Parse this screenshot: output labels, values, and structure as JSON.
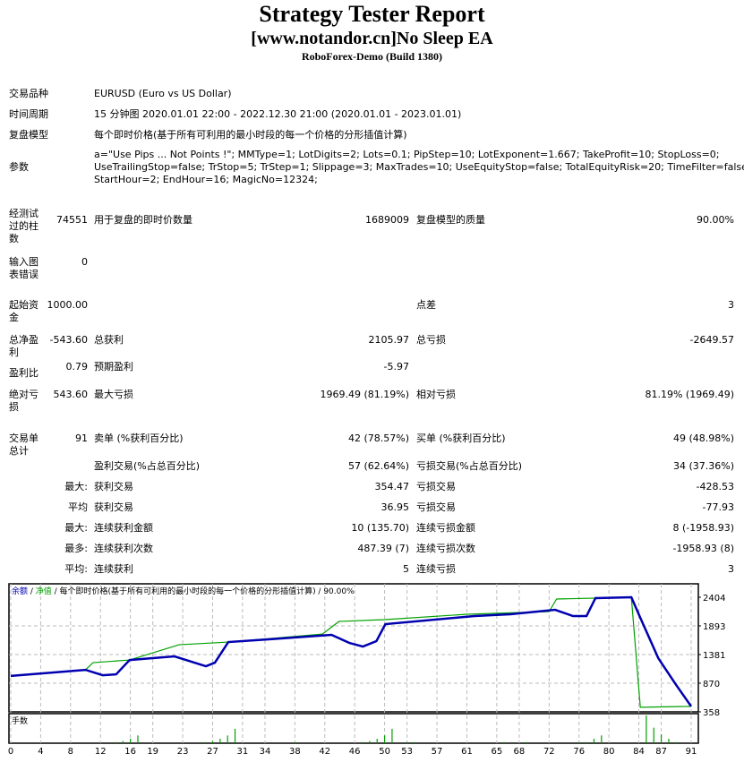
{
  "header": {
    "title": "Strategy Tester Report",
    "subtitle": "[www.notandor.cn]No Sleep EA",
    "build": "RoboForex-Demo (Build 1380)"
  },
  "info": {
    "symbol_label": "交易品种",
    "symbol": "EURUSD (Euro vs US Dollar)",
    "period_label": "时间周期",
    "period": "15 分钟图 2020.01.01 22:00 - 2022.12.30 21:00 (2020.01.01 - 2023.01.01)",
    "model_label": "复盘模型",
    "model": "每个即时价格(基于所有可利用的最小时段的每一个价格的分形插值计算)",
    "params_label": "参数",
    "params": [
      "a=\"Use Pips ... Not Points !\"; MMType=1; LotDigits=2; Lots=0.1; PipStep=10; LotExponent=1.667; TakeProfit=10; StopLoss=0;",
      "UseTrailingStop=false; TrStop=5; TrStep=1; Slippage=3; MaxTrades=10; UseEquityStop=false; TotalEquityRisk=20; TimeFilter=false;",
      "StartHour=2; EndHour=16; MagicNo=12324;"
    ]
  },
  "stats": [
    {
      "l1": "经测试过的柱数",
      "v1": "74551",
      "l2": "用于复盘的即时价数量",
      "v2": "1689009",
      "l3": "复盘模型的质量",
      "v3": "90.00%"
    },
    {
      "l1": "输入图表错误",
      "v1": "0"
    },
    {
      "l1": "起始资金",
      "v1": "1000.00",
      "l3": "点差",
      "v3": "3"
    },
    {
      "l1": "总净盈利",
      "v1": "-543.60",
      "l2": "总获利",
      "v2": "2105.97",
      "l3": "总亏损",
      "v3": "-2649.57"
    },
    {
      "l1": "盈利比",
      "v1": "0.79",
      "l2": "预期盈利",
      "v2": "-5.97"
    },
    {
      "l1": "绝对亏损",
      "v1": "543.60",
      "l2": "最大亏损",
      "v2": "1969.49 (81.19%)",
      "l3": "相对亏损",
      "v3": "81.19% (1969.49)"
    },
    {
      "l1": "交易单总计",
      "v1": "91",
      "l2": "卖单 (%获利百分比)",
      "v2": "42 (78.57%)",
      "l3": "买单 (%获利百分比)",
      "v3": "49 (48.98%)"
    },
    {
      "l2": "盈利交易(%占总百分比)",
      "v2": "57 (62.64%)",
      "l3": "亏损交易(%占总百分比)",
      "v3": "34 (37.36%)"
    },
    {
      "v1": "最大:",
      "l2": "获利交易",
      "v2": "354.47",
      "l3": "亏损交易",
      "v3": "-428.53"
    },
    {
      "v1": "平均",
      "l2": "获利交易",
      "v2": "36.95",
      "l3": "亏损交易",
      "v3": "-77.93"
    },
    {
      "v1": "最大:",
      "l2": "连续获利金额",
      "v2": "10 (135.70)",
      "l3": "连续亏损金额",
      "v3": "8 (-1958.93)"
    },
    {
      "v1": "最多:",
      "l2": "连续获利次数",
      "v2": "487.39 (7)",
      "l3": "连续亏损次数",
      "v3": "-1958.93 (8)"
    },
    {
      "v1": "平均:",
      "l2": "连续获利",
      "v2": "5",
      "l3": "连续亏损",
      "v3": "3"
    }
  ],
  "chart_data": {
    "type": "line",
    "legend": {
      "balance": "余额",
      "sep1": " / ",
      "equity": "净值",
      "rest": " / 每个即时价格(基于所有可利用的最小时段的每一个价格的分形插值计算) / 90.00%"
    },
    "lots_label": "手数",
    "colors": {
      "balance": "#00a000",
      "equity": "#0000b0",
      "lots": "#00a000"
    },
    "ylim": [
      358,
      2404
    ],
    "yticks": [
      2404,
      1893,
      1381,
      870,
      358
    ],
    "xlim": [
      0,
      91
    ],
    "xticks": [
      0,
      4,
      8,
      12,
      16,
      19,
      23,
      27,
      31,
      34,
      38,
      42,
      46,
      50,
      53,
      57,
      61,
      65,
      68,
      72,
      76,
      80,
      84,
      87,
      91
    ],
    "equity": [
      [
        0,
        1000
      ],
      [
        10,
        1108
      ],
      [
        12.3,
        1012
      ],
      [
        14.1,
        1028
      ],
      [
        15.9,
        1284
      ],
      [
        21.9,
        1348
      ],
      [
        26.1,
        1172
      ],
      [
        27.3,
        1236
      ],
      [
        29.1,
        1604
      ],
      [
        34.5,
        1652
      ],
      [
        42.9,
        1732
      ],
      [
        45.3,
        1588
      ],
      [
        47.1,
        1524
      ],
      [
        48.9,
        1620
      ],
      [
        50.1,
        1924
      ],
      [
        62,
        2068
      ],
      [
        66.8,
        2100
      ],
      [
        72.8,
        2180
      ],
      [
        75.2,
        2068
      ],
      [
        77,
        2068
      ],
      [
        78.2,
        2388
      ],
      [
        83,
        2404
      ],
      [
        84.2,
        2036
      ],
      [
        86.6,
        1316
      ],
      [
        89,
        836
      ],
      [
        91,
        456
      ]
    ],
    "balance": [
      [
        0,
        1000
      ],
      [
        10,
        1108
      ],
      [
        11,
        1236
      ],
      [
        15.9,
        1284
      ],
      [
        22.5,
        1556
      ],
      [
        29.1,
        1604
      ],
      [
        41.7,
        1748
      ],
      [
        43.9,
        1972
      ],
      [
        50,
        2004
      ],
      [
        61,
        2100
      ],
      [
        72,
        2148
      ],
      [
        73,
        2372
      ],
      [
        83,
        2404
      ],
      [
        84.2,
        440
      ],
      [
        91,
        456
      ]
    ],
    "lots": [
      [
        14,
        0.01
      ],
      [
        15,
        0.02
      ],
      [
        16,
        0.04
      ],
      [
        17,
        0.07
      ],
      [
        26,
        0.01
      ],
      [
        27,
        0.02
      ],
      [
        28,
        0.04
      ],
      [
        29,
        0.07
      ],
      [
        30,
        0.13
      ],
      [
        38,
        0.01
      ],
      [
        47,
        0.01
      ],
      [
        48,
        0.02
      ],
      [
        49,
        0.04
      ],
      [
        50,
        0.07
      ],
      [
        51,
        0.13
      ],
      [
        53,
        0.01
      ],
      [
        54,
        0.01
      ],
      [
        66,
        0.01
      ],
      [
        67,
        0.01
      ],
      [
        69,
        0.01
      ],
      [
        76,
        0.01
      ],
      [
        77,
        0.01
      ],
      [
        78,
        0.04
      ],
      [
        79,
        0.07
      ],
      [
        85,
        0.25
      ],
      [
        86,
        0.14
      ],
      [
        87,
        0.08
      ],
      [
        88,
        0.04
      ],
      [
        89,
        0.01
      ]
    ]
  }
}
